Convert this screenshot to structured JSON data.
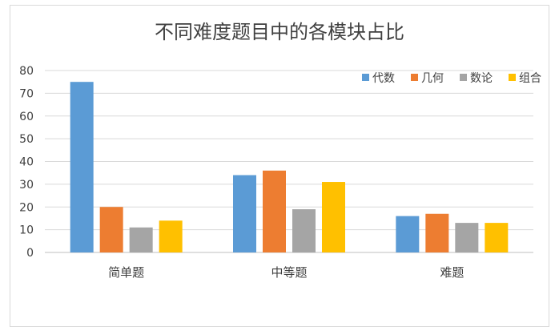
{
  "chart_data": {
    "type": "bar",
    "title": "不同难度题目中的各模块占比",
    "categories": [
      "简单题",
      "中等题",
      "难题"
    ],
    "series": [
      {
        "name": "代数",
        "color": "#5b9bd5",
        "values": [
          75,
          34,
          16
        ]
      },
      {
        "name": "几何",
        "color": "#ed7d31",
        "values": [
          20,
          36,
          17
        ]
      },
      {
        "name": "数论",
        "color": "#a5a5a5",
        "values": [
          11,
          19,
          13
        ]
      },
      {
        "name": "组合",
        "color": "#ffc000",
        "values": [
          14,
          31,
          13
        ]
      }
    ],
    "ylim": [
      0,
      80
    ],
    "yticks": [
      0,
      10,
      20,
      30,
      40,
      50,
      60,
      70,
      80
    ],
    "grid": true,
    "legend_position": "top-right"
  }
}
